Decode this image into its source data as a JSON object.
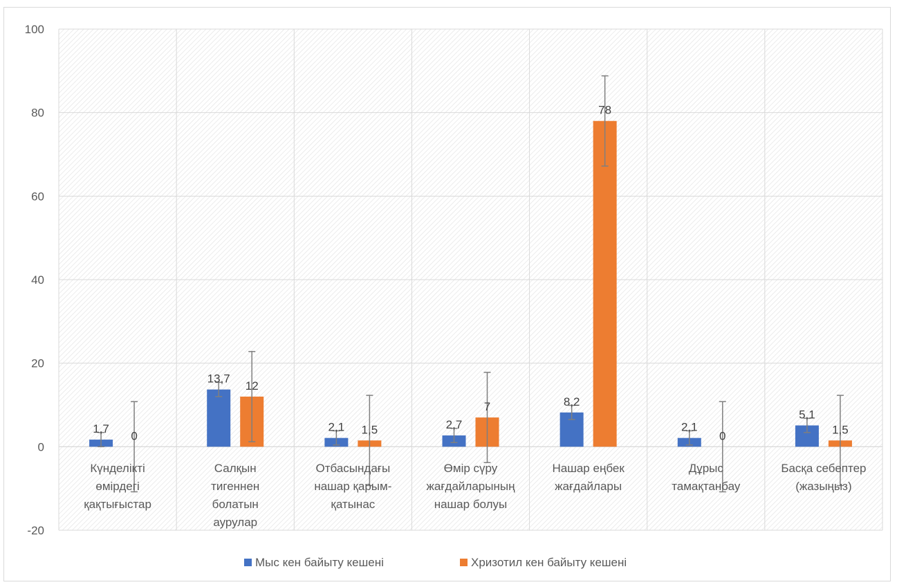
{
  "chart_data": {
    "type": "bar",
    "title": "",
    "xlabel": "",
    "ylabel": "",
    "ylim": [
      -20,
      100
    ],
    "yticks": [
      -20,
      0,
      20,
      40,
      60,
      80,
      100
    ],
    "grid": true,
    "plot_background": "hatched",
    "legend_position": "bottom",
    "categories": [
      [
        "Күнделікті",
        "өмірдегі",
        "қақтығыстар"
      ],
      [
        "Салқын",
        "тигеннен",
        "болатын",
        "аурулар"
      ],
      [
        "Отбасындағы",
        "нашар қарым-",
        "қатынас"
      ],
      [
        "Өмір сүру",
        "жағдайларының",
        "нашар болуы"
      ],
      [
        "Нашар еңбек",
        "жағдайлары"
      ],
      [
        "Дұрыс",
        "тамақтанбау"
      ],
      [
        "Басқа себептер",
        "(жазыңыз)"
      ]
    ],
    "series": [
      {
        "name": "Мыс кен байыту кешені",
        "color": "#4472C4",
        "values": [
          1.7,
          13.7,
          2.1,
          2.7,
          8.2,
          2.1,
          5.1
        ],
        "labels": [
          "1,7",
          "13,7",
          "2,1",
          "2,7",
          "8,2",
          "2,1",
          "5,1"
        ],
        "error": [
          1.7,
          1.7,
          1.7,
          1.7,
          1.7,
          1.7,
          1.7
        ]
      },
      {
        "name": "Хризотил кен байыту кешені",
        "color": "#ED7D31",
        "values": [
          0,
          12,
          1.5,
          7,
          78,
          0,
          1.5
        ],
        "labels": [
          "0",
          "12",
          "1,5",
          "7",
          "78",
          "0",
          "1,5"
        ],
        "error": [
          10.8,
          10.8,
          10.8,
          10.8,
          10.8,
          10.8,
          10.8
        ]
      }
    ]
  }
}
